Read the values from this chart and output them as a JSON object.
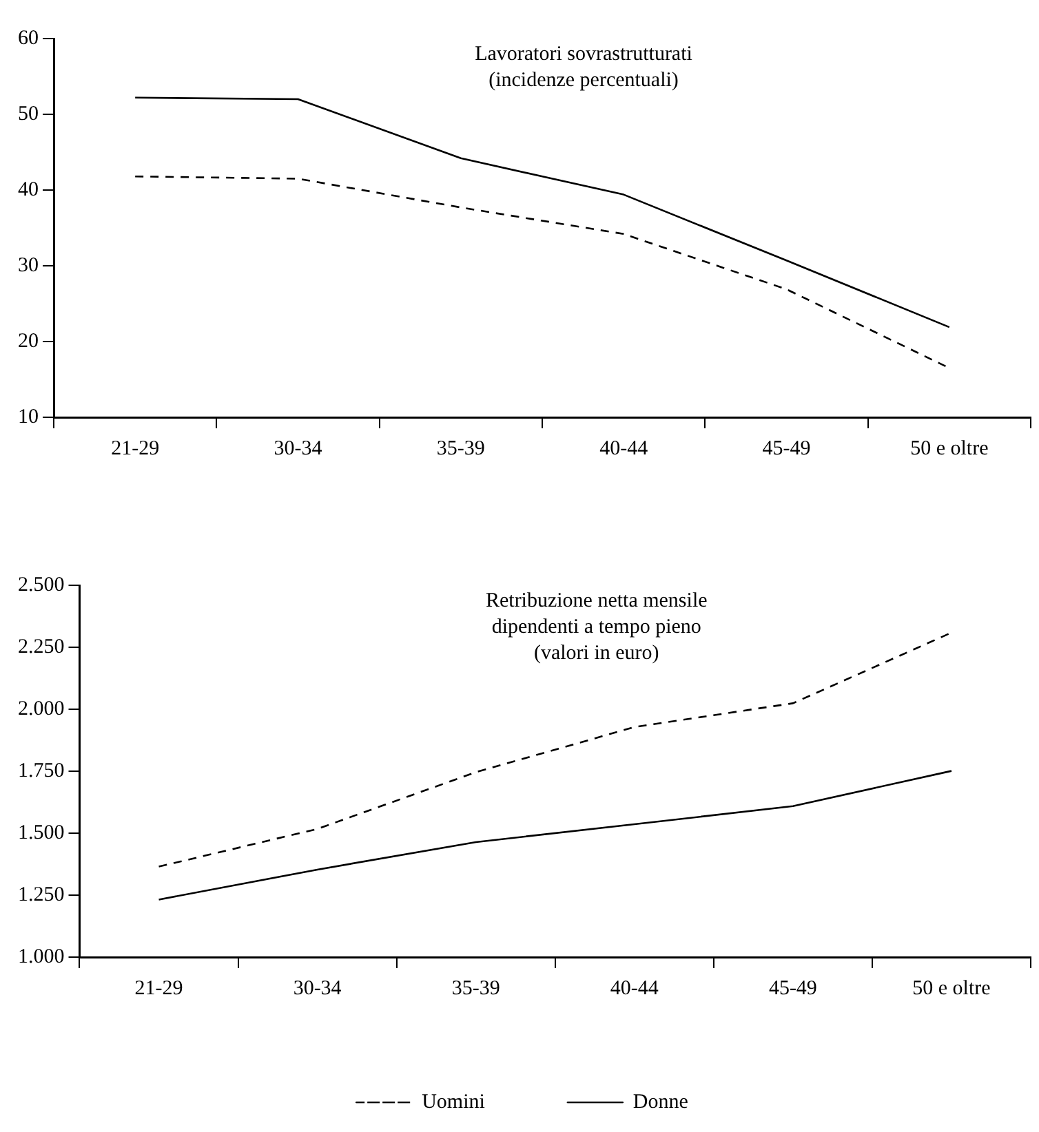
{
  "chart_data": [
    {
      "type": "line",
      "title": "Lavoratori sovrastrutturati\n(incidenze percentuali)",
      "categories": [
        "21-29",
        "30-34",
        "35-39",
        "40-44",
        "45-49",
        "50 e oltre"
      ],
      "series": [
        {
          "color": "#000000",
          "line_style": "dashed",
          "values": [
            41.8,
            41.5,
            37.7,
            34.2,
            26.9,
            16.5
          ]
        },
        {
          "color": "#000000",
          "line_style": "solid",
          "values": [
            52.2,
            52,
            44.2,
            39.4,
            30.7,
            21.9
          ]
        }
      ],
      "ylim": [
        10,
        60
      ],
      "yticks": [
        10,
        20,
        30,
        40,
        50,
        60
      ],
      "grid": false,
      "legend": false,
      "marker": "none"
    },
    {
      "type": "line",
      "title": "Retribuzione netta mensile\ndipendenti a tempo pieno\n(valori in euro)",
      "categories": [
        "21-29",
        "30-34",
        "35-39",
        "40-44",
        "45-49",
        "50 e oltre"
      ],
      "series": [
        {
          "name": "Uomini",
          "color": "#000000",
          "line_style": "dashed",
          "values": [
            1365,
            1517,
            1746,
            1928,
            2024,
            2309
          ]
        },
        {
          "name": "Donne",
          "color": "#000000",
          "line_style": "solid",
          "values": [
            1232,
            1353,
            1464,
            1536,
            1609,
            1751
          ]
        }
      ],
      "ylim": [
        1000,
        2500
      ],
      "yticks": [
        {
          "value": 1000,
          "label": "1.000"
        },
        {
          "value": 1250,
          "label": "1.250"
        },
        {
          "value": 1500,
          "label": "1.500"
        },
        {
          "value": 1750,
          "label": "1.750"
        },
        {
          "value": 2000,
          "label": "2.000"
        },
        {
          "value": 2250,
          "label": "2.250"
        },
        {
          "value": 2500,
          "label": "2.500"
        }
      ],
      "grid": false,
      "legend": "bottom",
      "marker": "none"
    }
  ]
}
